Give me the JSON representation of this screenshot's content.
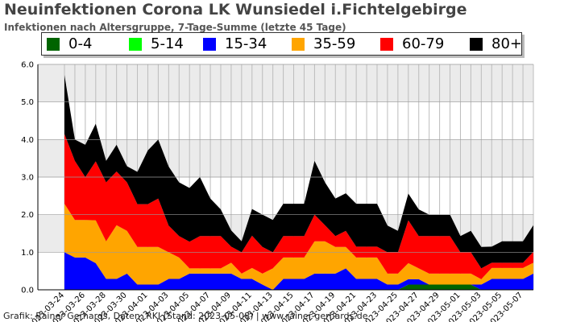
{
  "title": "Neuinfektionen Corona LK Wunsiedel i.Fichtelgebirge",
  "subtitle": "Infektionen nach Altersgruppe, 7-Tage-Summe (letzte 45 Tage)",
  "footer": "Grafik: Rainer Gerhards, Daten: RKI (Stand: 2023-05-08) | www.rainer-gerhards.de",
  "chart_data": {
    "type": "area",
    "stacked": true,
    "title": "Neuinfektionen Corona LK Wunsiedel i.Fichtelgebirge",
    "subtitle": "Infektionen nach Altersgruppe, 7-Tage-Summe (letzte 45 Tage)",
    "ylim": [
      0,
      6
    ],
    "yticks": [
      "0.0",
      "1.0",
      "2.0",
      "3.0",
      "4.0",
      "5.0",
      "6.0"
    ],
    "grid": true,
    "legend_position": "top",
    "x": [
      "2023-03-24",
      "2023-03-25",
      "2023-03-26",
      "2023-03-27",
      "2023-03-28",
      "2023-03-29",
      "2023-03-30",
      "2023-03-31",
      "2023-04-01",
      "2023-04-02",
      "2023-04-03",
      "2023-04-04",
      "2023-04-05",
      "2023-04-06",
      "2023-04-07",
      "2023-04-08",
      "2023-04-09",
      "2023-04-10",
      "2023-04-11",
      "2023-04-12",
      "2023-04-13",
      "2023-04-14",
      "2023-04-15",
      "2023-04-16",
      "2023-04-17",
      "2023-04-18",
      "2023-04-19",
      "2023-04-20",
      "2023-04-21",
      "2023-04-22",
      "2023-04-23",
      "2023-04-24",
      "2023-04-25",
      "2023-04-26",
      "2023-04-27",
      "2023-04-28",
      "2023-04-29",
      "2023-04-30",
      "2023-05-01",
      "2023-05-02",
      "2023-05-03",
      "2023-05-04",
      "2023-05-05",
      "2023-05-06",
      "2023-05-07",
      "2023-05-08"
    ],
    "xticks": [
      "2023-03-24",
      "2023-03-26",
      "2023-03-28",
      "2023-03-30",
      "2023-04-01",
      "2023-04-03",
      "2023-04-05",
      "2023-04-07",
      "2023-04-09",
      "2023-04-11",
      "2023-04-13",
      "2023-04-15",
      "2023-04-17",
      "2023-04-19",
      "2023-04-21",
      "2023-04-23",
      "2023-04-25",
      "2023-04-27",
      "2023-04-29",
      "2023-05-01",
      "2023-05-03",
      "2023-05-05",
      "2023-05-07"
    ],
    "series": [
      {
        "name": "0-4",
        "color": "#006400",
        "values": [
          0,
          0,
          0,
          0,
          0,
          0,
          0,
          0,
          0,
          0,
          0,
          0,
          0,
          0,
          0,
          0,
          0,
          0,
          0,
          0,
          0,
          0,
          0,
          0,
          0,
          0,
          0,
          0,
          0,
          0,
          0,
          0,
          0,
          0.14,
          0.14,
          0.14,
          0.14,
          0.14,
          0.14,
          0.14,
          0,
          0,
          0,
          0,
          0,
          0
        ]
      },
      {
        "name": "5-14",
        "color": "#00ff00",
        "values": [
          0,
          0,
          0,
          0,
          0,
          0,
          0,
          0,
          0,
          0,
          0,
          0,
          0,
          0,
          0,
          0,
          0,
          0,
          0,
          0,
          0,
          0,
          0,
          0,
          0,
          0,
          0,
          0,
          0,
          0,
          0,
          0,
          0,
          0,
          0,
          0,
          0,
          0,
          0,
          0,
          0,
          0,
          0,
          0,
          0,
          0
        ]
      },
      {
        "name": "15-34",
        "color": "#0000ff",
        "values": [
          1.0,
          0.86,
          0.86,
          0.71,
          0.29,
          0.29,
          0.43,
          0.14,
          0.14,
          0.14,
          0.29,
          0.29,
          0.43,
          0.43,
          0.43,
          0.43,
          0.43,
          0.29,
          0.29,
          0.14,
          0,
          0.29,
          0.29,
          0.29,
          0.43,
          0.43,
          0.43,
          0.57,
          0.29,
          0.29,
          0.29,
          0.14,
          0.14,
          0.14,
          0.14,
          0,
          0,
          0,
          0,
          0,
          0.14,
          0.29,
          0.29,
          0.29,
          0.29,
          0.43
        ]
      },
      {
        "name": "35-59",
        "color": "#ffa500",
        "values": [
          1.29,
          1.0,
          1.0,
          1.14,
          1.0,
          1.43,
          1.14,
          1.0,
          1.0,
          1.0,
          0.71,
          0.57,
          0.14,
          0.14,
          0.14,
          0.14,
          0.29,
          0.14,
          0.29,
          0.29,
          0.57,
          0.57,
          0.57,
          0.57,
          0.86,
          0.86,
          0.71,
          0.57,
          0.57,
          0.57,
          0.57,
          0.29,
          0.29,
          0.43,
          0.29,
          0.29,
          0.29,
          0.29,
          0.29,
          0.29,
          0.14,
          0.29,
          0.29,
          0.29,
          0.29,
          0.29
        ]
      },
      {
        "name": "60-79",
        "color": "#ff0000",
        "values": [
          1.86,
          1.57,
          1.14,
          1.57,
          1.57,
          1.43,
          1.29,
          1.14,
          1.14,
          1.29,
          0.71,
          0.57,
          0.71,
          0.86,
          0.86,
          0.86,
          0.43,
          0.57,
          0.86,
          0.71,
          0.43,
          0.57,
          0.57,
          0.57,
          0.71,
          0.43,
          0.29,
          0.43,
          0.29,
          0.29,
          0.29,
          0.57,
          0.57,
          1.14,
          0.86,
          1.0,
          1.0,
          1.0,
          0.57,
          0.57,
          0.29,
          0.14,
          0.14,
          0.14,
          0.14,
          0.29
        ]
      },
      {
        "name": "80+",
        "color": "#000000",
        "values": [
          1.57,
          0.57,
          0.86,
          1.0,
          0.57,
          0.71,
          0.43,
          0.86,
          1.43,
          1.57,
          1.57,
          1.43,
          1.43,
          1.57,
          1.0,
          0.71,
          0.43,
          0.29,
          0.71,
          0.86,
          0.86,
          0.86,
          0.86,
          0.86,
          1.43,
          1.14,
          1.0,
          1.0,
          1.14,
          1.14,
          1.14,
          0.71,
          0.57,
          0.71,
          0.71,
          0.57,
          0.57,
          0.57,
          0.43,
          0.57,
          0.57,
          0.43,
          0.57,
          0.57,
          0.57,
          0.71
        ]
      }
    ]
  }
}
